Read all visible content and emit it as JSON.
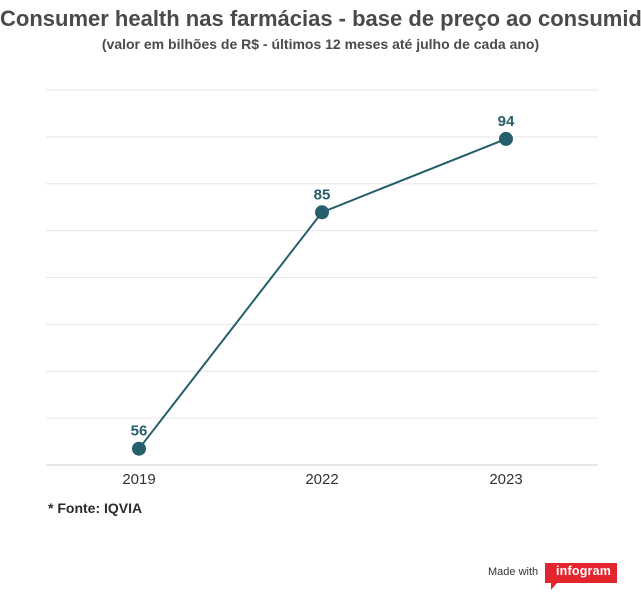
{
  "chart_data": {
    "type": "line",
    "title": "Consumer health nas farmácias - base de preço ao consumidor",
    "subtitle": "(valor em bilhões de R$ - últimos 12 meses até julho de cada ano)",
    "categories": [
      "2019",
      "2022",
      "2023"
    ],
    "values": [
      56,
      85,
      94
    ],
    "data_labels": [
      "56",
      "85",
      "94"
    ],
    "ylim": [
      54,
      100
    ],
    "grid": true,
    "line_color": "#255f6b",
    "marker_color": "#255f6b"
  },
  "footer": {
    "source": "* Fonte: IQVIA",
    "made_with": "Made with",
    "brand": "infogram",
    "brand_color": "#e3262e"
  }
}
